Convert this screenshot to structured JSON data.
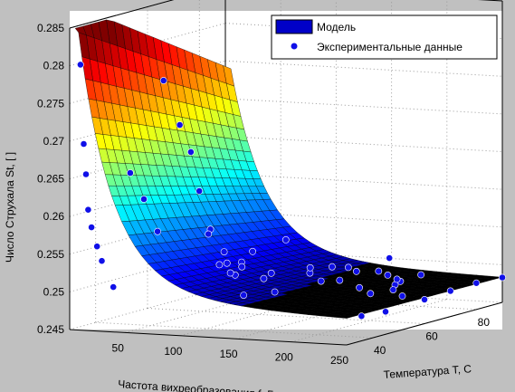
{
  "chart_data": {
    "type": "surface3d",
    "title": "",
    "xlabel": "Частота вихреобразования f, Гц",
    "ylabel": "Температура T, С",
    "zlabel": "Число Струхала St, [ ]",
    "xlim": [
      0,
      250
    ],
    "ylim": [
      30,
      90
    ],
    "zlim": [
      0.245,
      0.285
    ],
    "x_ticks": [
      "50",
      "100",
      "150",
      "200",
      "250"
    ],
    "y_ticks": [
      "40",
      "60",
      "80"
    ],
    "z_ticks": [
      "0.245",
      "0.25",
      "0.255",
      "0.26",
      "0.265",
      "0.27",
      "0.275",
      "0.28",
      "0.285"
    ],
    "grid": true,
    "legend": {
      "position": "top-right",
      "entries": [
        {
          "label": "Модель",
          "kind": "patch",
          "color": "#0000c8"
        },
        {
          "label": "Экспериментальные данные",
          "kind": "marker",
          "color": "#1010e8"
        }
      ]
    },
    "series": [
      {
        "name": "Модель",
        "kind": "surface",
        "colormap": "jet",
        "model_points": [
          {
            "f": 5,
            "T": 30,
            "St": 0.284
          },
          {
            "f": 20,
            "T": 30,
            "St": 0.262
          },
          {
            "f": 60,
            "T": 30,
            "St": 0.253
          },
          {
            "f": 100,
            "T": 30,
            "St": 0.2505
          },
          {
            "f": 150,
            "T": 30,
            "St": 0.249
          },
          {
            "f": 250,
            "T": 30,
            "St": 0.2482
          },
          {
            "f": 150,
            "T": 90,
            "St": 0.2485
          },
          {
            "f": 250,
            "T": 90,
            "St": 0.248
          }
        ]
      },
      {
        "name": "Экспериментальные данные",
        "kind": "scatter",
        "color": "#1010e8",
        "points": [
          {
            "f": 5,
            "T": 32,
            "St": 0.28
          },
          {
            "f": 8,
            "T": 32,
            "St": 0.2695
          },
          {
            "f": 10,
            "T": 32,
            "St": 0.2655
          },
          {
            "f": 12,
            "T": 32,
            "St": 0.2608
          },
          {
            "f": 15,
            "T": 32,
            "St": 0.2585
          },
          {
            "f": 20,
            "T": 32,
            "St": 0.256
          },
          {
            "f": 22,
            "T": 33,
            "St": 0.254
          },
          {
            "f": 30,
            "T": 34,
            "St": 0.2505
          },
          {
            "f": 50,
            "T": 32,
            "St": 0.266
          },
          {
            "f": 60,
            "T": 33,
            "St": 0.2625
          },
          {
            "f": 70,
            "T": 34,
            "St": 0.2582
          },
          {
            "f": 80,
            "T": 32,
            "St": 0.2785
          },
          {
            "f": 90,
            "T": 34,
            "St": 0.2725
          },
          {
            "f": 100,
            "T": 34,
            "St": 0.269
          },
          {
            "f": 110,
            "T": 33,
            "St": 0.264
          },
          {
            "f": 120,
            "T": 33,
            "St": 0.259
          },
          {
            "f": 130,
            "T": 34,
            "St": 0.256
          },
          {
            "f": 140,
            "T": 34,
            "St": 0.253
          },
          {
            "f": 150,
            "T": 33,
            "St": 0.2505
          },
          {
            "f": 90,
            "T": 45,
            "St": 0.257
          },
          {
            "f": 100,
            "T": 45,
            "St": 0.253
          },
          {
            "f": 110,
            "T": 45,
            "St": 0.252
          },
          {
            "f": 120,
            "T": 45,
            "St": 0.2535
          },
          {
            "f": 130,
            "T": 45,
            "St": 0.255
          },
          {
            "f": 140,
            "T": 45,
            "St": 0.2515
          },
          {
            "f": 150,
            "T": 45,
            "St": 0.2498
          },
          {
            "f": 160,
            "T": 45,
            "St": 0.2568
          },
          {
            "f": 170,
            "T": 50,
            "St": 0.252
          },
          {
            "f": 180,
            "T": 50,
            "St": 0.251
          },
          {
            "f": 190,
            "T": 50,
            "St": 0.253
          },
          {
            "f": 200,
            "T": 52,
            "St": 0.2528
          },
          {
            "f": 210,
            "T": 52,
            "St": 0.2502
          },
          {
            "f": 220,
            "T": 52,
            "St": 0.2495
          },
          {
            "f": 230,
            "T": 55,
            "St": 0.254
          },
          {
            "f": 240,
            "T": 55,
            "St": 0.251
          },
          {
            "f": 60,
            "T": 65,
            "St": 0.251
          },
          {
            "f": 100,
            "T": 65,
            "St": 0.25
          },
          {
            "f": 150,
            "T": 70,
            "St": 0.249
          },
          {
            "f": 200,
            "T": 70,
            "St": 0.2488
          },
          {
            "f": 250,
            "T": 80,
            "St": 0.2485
          },
          {
            "f": 250,
            "T": 90,
            "St": 0.2483
          },
          {
            "f": 200,
            "T": 80,
            "St": 0.2492
          },
          {
            "f": 150,
            "T": 85,
            "St": 0.2488
          },
          {
            "f": 100,
            "T": 80,
            "St": 0.2493
          },
          {
            "f": 50,
            "T": 75,
            "St": 0.2495
          },
          {
            "f": 240,
            "T": 40,
            "St": 0.2478
          },
          {
            "f": 250,
            "T": 45,
            "St": 0.248
          },
          {
            "f": 230,
            "T": 60,
            "St": 0.2485
          },
          {
            "f": 210,
            "T": 65,
            "St": 0.2487
          },
          {
            "f": 190,
            "T": 75,
            "St": 0.249
          },
          {
            "f": 170,
            "T": 80,
            "St": 0.2489
          },
          {
            "f": 130,
            "T": 85,
            "St": 0.2486
          },
          {
            "f": 250,
            "T": 60,
            "St": 0.2482
          },
          {
            "f": 250,
            "T": 70,
            "St": 0.2484
          }
        ]
      }
    ]
  }
}
